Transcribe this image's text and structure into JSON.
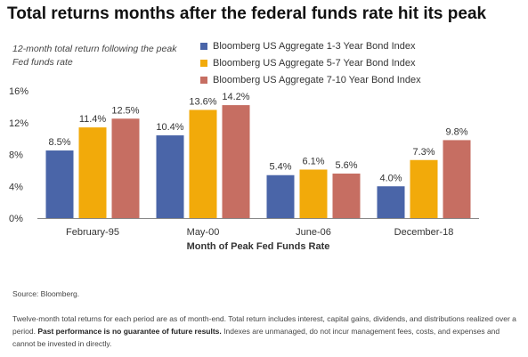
{
  "title": "Total returns months after the federal funds rate hit its peak",
  "subtitle": "12-month total return following the peak Fed funds rate",
  "colors": {
    "series1": "#4a65a8",
    "series2": "#f2aa0a",
    "series3": "#c66e62"
  },
  "chart_data": {
    "type": "bar",
    "categories": [
      "February-95",
      "May-00",
      "June-06",
      "December-18"
    ],
    "series": [
      {
        "name": "Bloomberg US Aggregate 1-3 Year Bond Index",
        "values": [
          8.5,
          10.4,
          5.4,
          4.0
        ],
        "labels": [
          "8.5%",
          "10.4%",
          "5.4%",
          "4.0%"
        ]
      },
      {
        "name": "Bloomberg US Aggregate 5-7 Year Bond Index",
        "values": [
          11.4,
          13.6,
          6.1,
          7.3
        ],
        "labels": [
          "11.4%",
          "13.6%",
          "6.1%",
          "7.3%"
        ]
      },
      {
        "name": "Bloomberg US Aggregate 7-10 Year Bond Index",
        "values": [
          12.5,
          14.2,
          5.6,
          9.8
        ],
        "labels": [
          "12.5%",
          "14.2%",
          "5.6%",
          "9.8%"
        ]
      }
    ],
    "xlabel": "Month of Peak Fed Funds Rate",
    "ylabel": "",
    "ylim": [
      0,
      16
    ],
    "yticks": [
      0,
      4,
      8,
      12,
      16
    ],
    "ytick_labels": [
      "0%",
      "4%",
      "8%",
      "12%",
      "16%"
    ],
    "grid": false,
    "legend_position": "top"
  },
  "source": "Source: Bloomberg.",
  "footnote": {
    "text1": "Twelve-month total returns for each period are as of month-end. Total return includes interest, capital gains, dividends, and distributions realized over a period. ",
    "bold": "Past performance is no guarantee of future results.",
    "text2": " Indexes are unmanaged, do not incur management fees, costs, and expenses and cannot be invested in directly."
  }
}
